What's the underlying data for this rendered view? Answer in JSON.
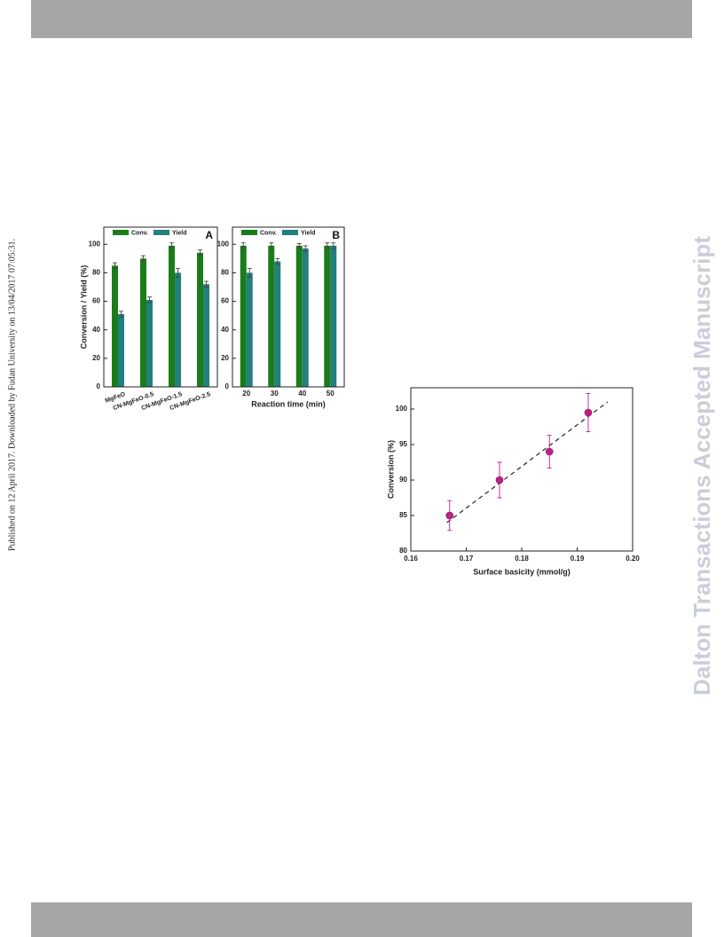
{
  "side_note": "Published on 12 April 2017. Downloaded by Fudan University on 13/04/2017 07:05:31.",
  "watermark": "Dalton Transactions Accepted Manuscript",
  "chart_data": [
    {
      "type": "bar",
      "panel_label": "A",
      "ylabel": "Conversion / Yield (%)",
      "categories": [
        "MgFeO",
        "CN-MgFeO-0.5",
        "CN-MgFeO-1.5",
        "CN-MgFeO-2.5"
      ],
      "series": [
        {
          "name": "Conv.",
          "color": "#1a7d1a",
          "values": [
            85,
            90,
            99,
            94
          ],
          "errors": [
            2,
            2,
            2,
            2
          ]
        },
        {
          "name": "Yield",
          "color": "#23807c",
          "values": [
            51,
            61,
            80,
            72
          ],
          "errors": [
            2,
            2,
            3,
            2
          ]
        }
      ],
      "ylim": [
        0,
        112
      ],
      "yticks": [
        0,
        20,
        40,
        60,
        80,
        100
      ]
    },
    {
      "type": "bar",
      "panel_label": "B",
      "xlabel": "Reaction time (min)",
      "categories": [
        "20",
        "30",
        "40",
        "50"
      ],
      "series": [
        {
          "name": "Conv.",
          "color": "#1a7d1a",
          "values": [
            99,
            99,
            99,
            99
          ],
          "errors": [
            2,
            2,
            1.5,
            2
          ]
        },
        {
          "name": "Yield",
          "color": "#23807c",
          "values": [
            80,
            88,
            97,
            99
          ],
          "errors": [
            3,
            2,
            2,
            2
          ]
        }
      ],
      "ylim": [
        0,
        112
      ],
      "yticks": [
        0,
        20,
        40,
        60,
        80,
        100
      ]
    },
    {
      "type": "scatter",
      "xlabel": "Surface basicity (mmol/g)",
      "ylabel": "Conversion (%)",
      "x": [
        0.167,
        0.176,
        0.185,
        0.192
      ],
      "values": [
        85,
        90,
        94,
        99.5
      ],
      "errors": [
        2.1,
        2.5,
        2.3,
        2.7
      ],
      "color": "#c0208a",
      "fit_line": {
        "x": [
          0.1665,
          0.1955
        ],
        "y": [
          84,
          101
        ]
      },
      "xlim": [
        0.16,
        0.2
      ],
      "ylim": [
        80,
        103
      ],
      "xticks": [
        0.16,
        0.17,
        0.18,
        0.19,
        {
          "value": 0.2,
          "label": "0.20"
        }
      ],
      "yticks": [
        80,
        85,
        90,
        95,
        100
      ]
    }
  ]
}
